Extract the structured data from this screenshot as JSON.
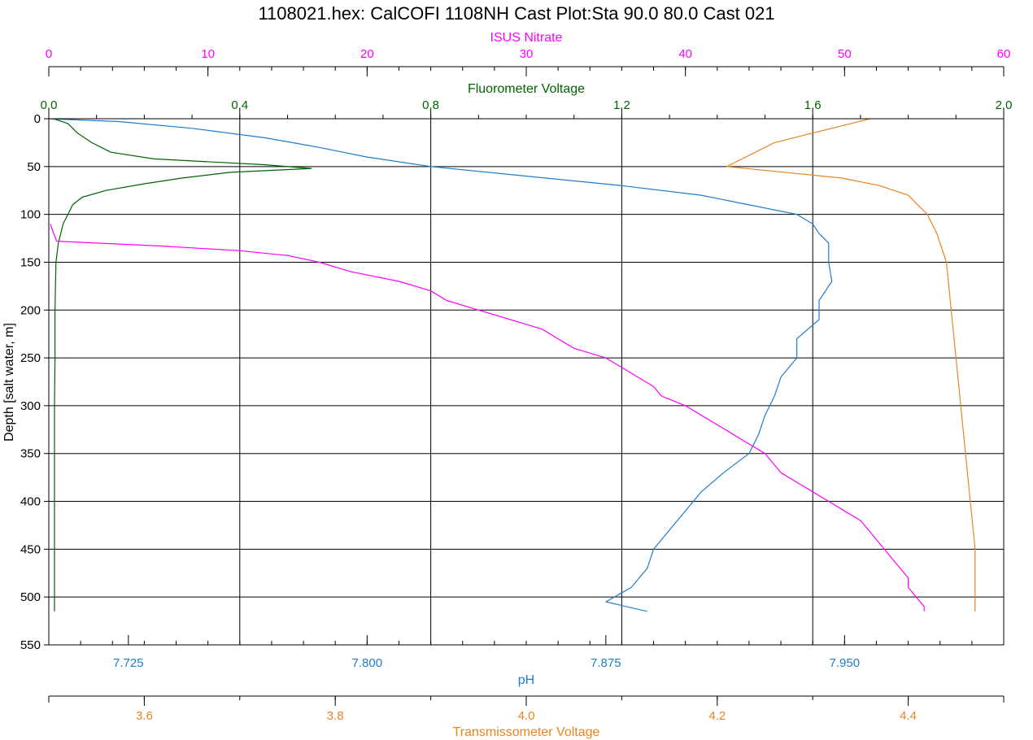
{
  "chart_data": {
    "type": "line",
    "title": "1108021.hex: CalCOFI 1108NH Cast Plot:Sta 90.0 80.0 Cast 021",
    "grid": true,
    "y_axis": {
      "label": "Depth [salt water, m]",
      "range": [
        0,
        550
      ],
      "inverted": true,
      "ticks": [
        "0",
        "50",
        "100",
        "150",
        "200",
        "250",
        "300",
        "350",
        "400",
        "450",
        "500",
        "550"
      ]
    },
    "x_axes": [
      {
        "key": "nitrate",
        "label": "ISUS Nitrate",
        "position": "top",
        "color": "#ff00ff",
        "range": [
          0,
          60
        ],
        "ticks": [
          0,
          10,
          20,
          30,
          40,
          50,
          60
        ],
        "tick_labels": [
          "0",
          "10",
          "20",
          "30",
          "40",
          "50",
          "60"
        ]
      },
      {
        "key": "fluor",
        "label": "Fluorometer Voltage",
        "position": "top",
        "color": "#006400",
        "range": [
          0,
          2
        ],
        "ticks": [
          0,
          0.4,
          0.8,
          1.2,
          1.6,
          2.0
        ],
        "tick_labels": [
          "0.0",
          "0.4",
          "0.8",
          "1.2",
          "1.6",
          "2.0"
        ]
      },
      {
        "key": "ph",
        "label": "pH",
        "position": "bottom",
        "color": "#1e7dd0",
        "range": [
          7.7,
          8.0
        ],
        "ticks": [
          7.725,
          7.8,
          7.875,
          7.95
        ],
        "tick_labels": [
          "7.725",
          "7.800",
          "7.875",
          "7.950"
        ]
      },
      {
        "key": "trans",
        "label": "Transmissometer Voltage",
        "position": "bottom",
        "color": "#e8851f",
        "range": [
          3.5,
          4.5
        ],
        "ticks": [
          3.6,
          3.8,
          4.0,
          4.2,
          4.4
        ],
        "tick_labels": [
          "3.6",
          "3.8",
          "4.0",
          "4.2",
          "4.4"
        ]
      }
    ],
    "series": [
      {
        "axis": "fluor",
        "color": "#006400",
        "depth": [
          0,
          5,
          15,
          25,
          35,
          42,
          48,
          52,
          56,
          62,
          68,
          75,
          82,
          90,
          100,
          110,
          120,
          130,
          150,
          200,
          250,
          300,
          350,
          400,
          450,
          515
        ],
        "values": [
          0.01,
          0.04,
          0.06,
          0.09,
          0.13,
          0.22,
          0.45,
          0.55,
          0.38,
          0.28,
          0.2,
          0.12,
          0.07,
          0.05,
          0.04,
          0.03,
          0.025,
          0.02,
          0.015,
          0.013,
          0.013,
          0.012,
          0.012,
          0.012,
          0.012,
          0.012
        ]
      },
      {
        "axis": "ph",
        "color": "#1e7dd0",
        "depth": [
          0,
          3,
          10,
          20,
          30,
          40,
          50,
          60,
          70,
          80,
          90,
          100,
          110,
          120,
          130,
          150,
          170,
          190,
          210,
          230,
          250,
          270,
          290,
          310,
          330,
          350,
          370,
          390,
          410,
          430,
          450,
          470,
          490,
          505,
          515
        ],
        "values": [
          7.7,
          7.722,
          7.745,
          7.768,
          7.785,
          7.8,
          7.82,
          7.85,
          7.88,
          7.905,
          7.92,
          7.935,
          7.94,
          7.942,
          7.945,
          7.945,
          7.946,
          7.942,
          7.942,
          7.935,
          7.935,
          7.93,
          7.928,
          7.925,
          7.923,
          7.92,
          7.912,
          7.905,
          7.9,
          7.895,
          7.89,
          7.888,
          7.883,
          7.875,
          7.888
        ]
      },
      {
        "axis": "trans",
        "color": "#e8851f",
        "depth": [
          0,
          5,
          15,
          25,
          35,
          45,
          50,
          55,
          62,
          70,
          80,
          90,
          100,
          120,
          150,
          200,
          250,
          300,
          350,
          400,
          450,
          470,
          490,
          510,
          515
        ],
        "values": [
          4.36,
          4.34,
          4.3,
          4.26,
          4.24,
          4.22,
          4.21,
          4.26,
          4.33,
          4.37,
          4.4,
          4.41,
          4.42,
          4.43,
          4.44,
          4.445,
          4.45,
          4.455,
          4.46,
          4.465,
          4.47,
          4.47,
          4.47,
          4.47,
          4.47
        ]
      },
      {
        "axis": "nitrate",
        "color": "#ff00ff",
        "depth": [
          110,
          120,
          128,
          130,
          133,
          138,
          143,
          150,
          160,
          170,
          180,
          190,
          200,
          210,
          220,
          230,
          240,
          250,
          260,
          270,
          280,
          290,
          300,
          310,
          320,
          330,
          340,
          350,
          360,
          370,
          380,
          390,
          400,
          410,
          420,
          430,
          440,
          450,
          460,
          470,
          480,
          490,
          500,
          510,
          515
        ],
        "values": [
          0.1,
          0.3,
          0.5,
          3,
          7,
          12,
          15,
          17,
          19,
          22,
          24,
          25,
          27,
          29,
          31,
          32,
          33,
          35,
          36,
          37,
          38,
          38.5,
          40,
          41,
          42,
          43,
          44,
          45,
          45.5,
          46,
          47,
          48,
          49,
          50,
          51,
          51.5,
          52,
          52.5,
          53,
          53.5,
          54,
          54,
          54.5,
          55,
          55
        ]
      }
    ]
  }
}
